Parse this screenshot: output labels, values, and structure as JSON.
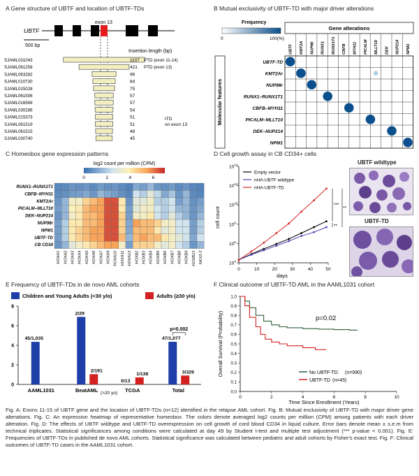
{
  "panelA": {
    "title": "A Gene structure of UBTF and location of UBTF-TDs",
    "gene": "UBTF",
    "exon_label": "exon 13",
    "scale_label": "500 bp",
    "insertion_header": "Insertion length (bp)",
    "rows": [
      {
        "id": "SJAML031043",
        "len": 1107,
        "note": "PTD (exon 11-14)"
      },
      {
        "id": "SJAML061258",
        "len": 421,
        "note": "PTD (exon 13)"
      },
      {
        "id": "SJAML063282",
        "len": 96,
        "note": ""
      },
      {
        "id": "SJAML010730",
        "len": 84,
        "note": ""
      },
      {
        "id": "SJAML015028",
        "len": 75,
        "note": ""
      },
      {
        "id": "SJAML061506",
        "len": 57,
        "note": ""
      },
      {
        "id": "SJAML016569",
        "len": 57,
        "note": ""
      },
      {
        "id": "SJAML030286",
        "len": 54,
        "note": ""
      },
      {
        "id": "SJAML015373",
        "len": 51,
        "note": ""
      },
      {
        "id": "SJAML061519",
        "len": 51,
        "note": ""
      },
      {
        "id": "SJAML061515",
        "len": 48,
        "note": ""
      },
      {
        "id": "SJAML030740",
        "len": 45,
        "note": ""
      }
    ],
    "itd_note_1": "ITD",
    "itd_note_2": "on exon 13"
  },
  "panelB": {
    "title": "B Mutual exclusivity of UBTF-TD with major driver alterations",
    "legend_label": "Frequency",
    "legend_min": "0",
    "legend_max": "100(%)",
    "col_header": "Gene alterations",
    "row_header": "Molecular features",
    "columns": [
      "UBTF",
      "KMT2A",
      "NUP98",
      "RUNX1",
      "RUNX1T1",
      "CBFB",
      "MYH11",
      "PICALM",
      "MLLT10",
      "DEK",
      "NUP214",
      "NPM1"
    ],
    "rows": [
      "UBTF-TD",
      "KMT2Ar",
      "NUP98r",
      "RUNX1–RUNX1T1",
      "CBFB–MYH11",
      "PICALM–MLLT10",
      "DEK–NUP214",
      "NPM1"
    ]
  },
  "panelC": {
    "title": "C Homeobox gene expression patterns",
    "colorbar_label": "log2 count per million (CPM)",
    "colorbar_ticks": [
      "0",
      "2",
      "4",
      "6"
    ],
    "rows": [
      "RUNX1–RUNX1T1",
      "CBFB–MYH11",
      "KMT2Ar",
      "PICALM–MLLT10",
      "DEK–NUP214",
      "NUP98r",
      "NPM1",
      "UBTF-TD",
      "CB CD34"
    ],
    "cols": [
      "HOXA1",
      "HOXA2",
      "HOXA3",
      "HOXA4",
      "HOXA5",
      "HOXA6",
      "HOXA7",
      "HOXA9",
      "HOXA10",
      "HOXA11",
      "HOXA13",
      "HOXB2",
      "HOXB3",
      "HOXB4",
      "HOXB5",
      "HOXB6",
      "HOXB7",
      "HOXB8",
      "HOXB9",
      "HOXB13",
      "NKX2-3"
    ]
  },
  "panelD": {
    "title": "D Cell growth assay in CB CD34+ cells",
    "ylabel": "cell count",
    "xlabel": "days",
    "legend": [
      "Empty vector",
      "nHA-UBTF wildtype",
      "nHA-UBTF-TD"
    ],
    "sig_labels": [
      "***",
      "***",
      "**"
    ],
    "image_labels": [
      "UBTF wildtype",
      "UBTF-TD"
    ]
  },
  "panelE": {
    "title": "E Frequency of UBTF-TDs in de novo AML cohorts",
    "legend_children": "Children and Young Adults (<30 y/o)",
    "legend_adults": "Adults (≥30 y/o)",
    "pvalue_label": "p=0.002",
    "above20_label": "(>20 yo)"
  },
  "panelF": {
    "title": "F  Clinical outcome of UBTF-TD AML in the AAML1031 cohort",
    "ylabel": "Overall Survival (Probability)",
    "xlabel": "Time Since Enrollment (Years)",
    "pvalue": "p=0.02",
    "legend_no": "No UBTF-TD",
    "legend_no_n": "(n=990)",
    "legend_yes": "UBTF-TD",
    "legend_yes_n": "(n=45)"
  },
  "chart_data": [
    {
      "type": "heatmap",
      "title": "Homeobox gene expression patterns",
      "xlabel": "",
      "ylabel": "",
      "colorbar_label": "log2 count per million (CPM)",
      "range": [
        0,
        7
      ],
      "rows": [
        "RUNX1–RUNX1T1",
        "CBFB–MYH11",
        "KMT2Ar",
        "PICALM–MLLT10",
        "DEK–NUP214",
        "NUP98r",
        "NPM1",
        "UBTF-TD",
        "CB CD34"
      ],
      "cols": [
        "HOXA1",
        "HOXA2",
        "HOXA3",
        "HOXA4",
        "HOXA5",
        "HOXA6",
        "HOXA7",
        "HOXA9",
        "HOXA10",
        "HOXA11",
        "HOXA13",
        "HOXB2",
        "HOXB3",
        "HOXB4",
        "HOXB5",
        "HOXB6",
        "HOXB7",
        "HOXB8",
        "HOXB9",
        "HOXB13",
        "NKX2-3"
      ],
      "values": [
        [
          0.5,
          0.6,
          0.8,
          0.7,
          0.8,
          0.6,
          0.9,
          0.7,
          0.8,
          0.6,
          0.4,
          1.2,
          1.0,
          1.5,
          0.8,
          0.7,
          0.9,
          0.6,
          0.8,
          0.5,
          0.4
        ],
        [
          0.6,
          0.7,
          0.9,
          1.0,
          1.2,
          0.8,
          1.5,
          1.2,
          1.0,
          0.7,
          0.5,
          2.5,
          2.0,
          3.0,
          2.2,
          1.2,
          1.8,
          0.8,
          1.5,
          0.6,
          0.5
        ],
        [
          0.8,
          1.5,
          3.5,
          3.5,
          4.5,
          5.0,
          5.5,
          6.5,
          6.5,
          4.0,
          0.8,
          3.0,
          3.0,
          3.5,
          2.0,
          2.0,
          2.5,
          1.0,
          1.5,
          0.7,
          1.0
        ],
        [
          1.0,
          1.5,
          3.8,
          4.0,
          5.0,
          5.5,
          5.5,
          6.5,
          6.5,
          4.0,
          1.0,
          3.0,
          3.5,
          3.5,
          2.5,
          2.0,
          2.5,
          1.5,
          1.5,
          0.8,
          1.2
        ],
        [
          0.8,
          1.5,
          3.5,
          4.0,
          5.0,
          5.0,
          5.5,
          6.5,
          6.5,
          4.5,
          1.0,
          3.5,
          3.5,
          4.0,
          2.5,
          2.0,
          3.0,
          2.0,
          1.5,
          0.8,
          1.5
        ],
        [
          1.0,
          2.0,
          4.0,
          4.0,
          5.0,
          5.0,
          5.5,
          6.5,
          6.5,
          4.5,
          1.2,
          5.5,
          5.0,
          5.0,
          4.5,
          3.5,
          3.5,
          2.5,
          2.5,
          1.0,
          2.0
        ],
        [
          1.0,
          2.0,
          4.0,
          4.5,
          5.0,
          5.5,
          5.5,
          6.5,
          6.5,
          4.5,
          1.2,
          5.0,
          5.0,
          5.0,
          4.0,
          3.0,
          3.5,
          2.5,
          2.5,
          1.0,
          2.0
        ],
        [
          1.0,
          2.0,
          4.0,
          4.5,
          5.0,
          5.5,
          5.5,
          6.5,
          6.5,
          5.0,
          1.5,
          5.0,
          5.5,
          5.0,
          5.0,
          4.0,
          3.5,
          3.0,
          2.5,
          1.2,
          2.5
        ],
        [
          0.8,
          1.5,
          3.0,
          3.5,
          4.0,
          4.5,
          5.0,
          5.5,
          5.5,
          3.5,
          1.0,
          4.5,
          4.5,
          4.5,
          3.5,
          3.0,
          3.5,
          2.5,
          2.0,
          0.8,
          1.5
        ]
      ]
    },
    {
      "type": "line",
      "title": "Cell growth assay in CB CD34+ cells",
      "xlabel": "days",
      "ylabel": "cell count",
      "yscale": "log10",
      "ylim": [
        10000,
        100000000000000
      ],
      "xlim": [
        0,
        50
      ],
      "x": [
        0,
        7,
        14,
        21,
        28,
        35,
        42,
        49
      ],
      "yticks": [
        "10^4",
        "10^6",
        "10^8",
        "10^10",
        "10^12",
        "10^14"
      ],
      "xticks": [
        0,
        10,
        20,
        30,
        40,
        50
      ],
      "series": [
        {
          "name": "Empty vector",
          "color": "#000000",
          "values": [
            20000,
            80000,
            280000,
            900000,
            3000000,
            12000000,
            50000000,
            200000000
          ]
        },
        {
          "name": "nHA-UBTF wildtype",
          "color": "#4a3fb5",
          "values": [
            20000,
            70000,
            200000,
            600000,
            1800000,
            6000000,
            15000000,
            50000000
          ]
        },
        {
          "name": "nHA-UBTF-TD",
          "color": "#d62728",
          "values": [
            20000,
            150000,
            1200000,
            12000000,
            120000000,
            2000000000,
            30000000000,
            500000000000
          ]
        }
      ]
    },
    {
      "type": "bar",
      "title": "Frequency of UBTF-TDs in de novo AML cohorts",
      "xlabel": "",
      "ylabel": "%",
      "ylim": [
        0,
        8
      ],
      "yticks": [
        0,
        2,
        4,
        6,
        8
      ],
      "categories": [
        "AAML1031",
        "BeatAML",
        "TCGA",
        "Total"
      ],
      "series": [
        {
          "name": "Children and Young Adults (<30 y/o)",
          "color": "#1f3fa8",
          "values": [
            4.35,
            6.9,
            0,
            4.36
          ],
          "labels": [
            "45/1,035",
            "2/29",
            "0/13",
            "47/1,077"
          ]
        },
        {
          "name": "Adults (≥30 y/o)",
          "color": "#d42020",
          "values": [
            null,
            1.05,
            0.72,
            0.91
          ],
          "labels": [
            "",
            "2/191",
            "1/138",
            "3/329"
          ]
        }
      ]
    },
    {
      "type": "line",
      "title": "Clinical outcome of UBTF-TD AML in the AAML1031 cohort",
      "xlabel": "Time Since Enrollment (Years)",
      "ylabel": "Overall Survival (Probability)",
      "xlim": [
        0,
        10
      ],
      "ylim": [
        0,
        1.0
      ],
      "xticks": [
        0,
        2,
        4,
        6,
        8,
        10
      ],
      "yticks": [
        0.0,
        0.1,
        0.2,
        0.3,
        0.4,
        0.5,
        0.6,
        0.7,
        0.8,
        0.9,
        1.0
      ],
      "series": [
        {
          "name": "No UBTF-TD",
          "color": "#2f5e3a",
          "x": [
            0,
            0.3,
            0.6,
            1.0,
            1.5,
            2.0,
            2.5,
            3.0,
            4.0,
            5.0,
            6.0,
            7.0,
            7.5
          ],
          "values": [
            1.0,
            0.95,
            0.88,
            0.8,
            0.74,
            0.7,
            0.68,
            0.67,
            0.66,
            0.655,
            0.65,
            0.645,
            0.645
          ]
        },
        {
          "name": "UBTF-TD",
          "color": "#d42020",
          "x": [
            0,
            0.3,
            0.6,
            1.0,
            1.3,
            1.6,
            2.0,
            2.5,
            3.0,
            4.0,
            4.8,
            5.5
          ],
          "values": [
            1.0,
            0.9,
            0.78,
            0.68,
            0.6,
            0.55,
            0.52,
            0.5,
            0.48,
            0.46,
            0.44,
            0.44
          ]
        }
      ]
    }
  ],
  "caption": "Fig. A: Exons 11-15 of UBTF gene and the location of UBTF-TDs (n=12) identified in the relapse AML cohort. Fig. B: Mutual exclusivity of UBTF-TD with major driver gene alterations. Fig. C: An expression heatmap of representative homeobox. The colors denote averaged log2 counts per million (CPM) among patients with each driver alteration. Fig. D: The effects of UBTF wildtype and UBTF-TD overexpression on cell growth of cord blood CD34 in liquid culture. Error bars denote mean ± s.e.m from technical triplicates. Statistical significances among conditions were calculated at day 49 by Student t-test and multiple test adjustment (*** p-value < 0.001). Fig. E: Frequencies of UBTF-TDs in published de novo AML cohorts. Statistical significance was calculated between pediatric and adult cohorts by Fisher's exact test. Fig. F: Clinical outcomes of UBTF-TD cases in the AAML1031 cohort."
}
